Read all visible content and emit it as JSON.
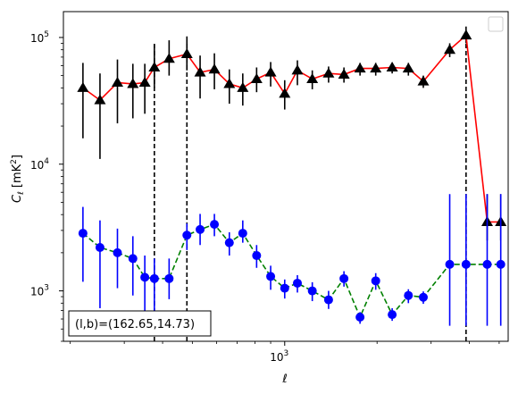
{
  "chart_data": {
    "type": "line",
    "xlabel": "ℓ",
    "ylabel_main": "C",
    "ylabel_sub": "ℓ",
    "ylabel_unit_open": "  [mK",
    "ylabel_unit_sup": "2",
    "ylabel_unit_close": "]",
    "x_scale": "log",
    "y_scale": "log",
    "xlim": [
      190,
      5350
    ],
    "ylim": [
      400,
      160000
    ],
    "x_tick_labels": [
      {
        "value": 1000,
        "base": "10",
        "exp": "3"
      }
    ],
    "y_tick_labels": [
      {
        "value": 1000,
        "base": "10",
        "exp": "3"
      },
      {
        "value": 10000,
        "base": "10",
        "exp": "4"
      },
      {
        "value": 100000,
        "base": "10",
        "exp": "5"
      }
    ],
    "legend": "top-right (empty)",
    "grid": false,
    "vertical_lines_x": [
      376,
      480,
      3900
    ],
    "annotation": "(l,b)=(162.65,14.73)",
    "series": [
      {
        "color": "#ff0000",
        "line_style": "solid",
        "marker": "triangle",
        "marker_color": "#000000",
        "errorbar_color": "#000000",
        "x": [
          220,
          250,
          285,
          320,
          350,
          376,
          420,
          480,
          530,
          590,
          660,
          730,
          810,
          900,
          1000,
          1100,
          1230,
          1390,
          1560,
          1760,
          1980,
          2240,
          2530,
          2830,
          3450,
          3900,
          4570,
          5060
        ],
        "y": [
          40000,
          32000,
          44000,
          43000,
          44000,
          58000,
          68000,
          74000,
          53000,
          56000,
          43000,
          40000,
          47000,
          53000,
          36000,
          55000,
          47000,
          52000,
          51000,
          57000,
          57000,
          58000,
          57000,
          45000,
          80000,
          104000,
          3500,
          3500
        ],
        "y_low": [
          16000,
          11000,
          21000,
          23000,
          25000,
          40000,
          50000,
          55000,
          33000,
          39000,
          30000,
          29000,
          37000,
          41000,
          27000,
          42000,
          39000,
          44000,
          44000,
          50000,
          50000,
          52000,
          50000,
          40000,
          70000,
          90000,
          2500,
          2500
        ],
        "y_high": [
          63000,
          52000,
          67000,
          62000,
          62000,
          88000,
          95000,
          102000,
          72000,
          75000,
          56000,
          52000,
          58000,
          64000,
          46000,
          66000,
          55000,
          59000,
          58000,
          63000,
          63000,
          63000,
          63000,
          50000,
          90000,
          122000,
          5800,
          5800
        ]
      },
      {
        "color": "#008000",
        "line_style": "dashed",
        "marker": "circle",
        "marker_color": "#0000ff",
        "errorbar_color": "#0000ff",
        "x": [
          220,
          250,
          285,
          320,
          350,
          376,
          420,
          480,
          530,
          590,
          660,
          730,
          810,
          900,
          1000,
          1100,
          1230,
          1390,
          1560,
          1760,
          1980,
          2240,
          2530,
          2830,
          3450,
          3900,
          4570,
          5060
        ],
        "y": [
          2850,
          2200,
          2000,
          1800,
          1280,
          1250,
          1250,
          2750,
          3050,
          3350,
          2400,
          2850,
          1900,
          1300,
          1050,
          1150,
          1000,
          850,
          1250,
          620,
          1200,
          650,
          920,
          890,
          1620,
          1620,
          1620,
          1620
        ],
        "y_low": [
          1180,
          730,
          1050,
          920,
          600,
          680,
          860,
          2100,
          2300,
          2700,
          1900,
          2400,
          1520,
          1020,
          870,
          970,
          830,
          720,
          1080,
          550,
          1020,
          580,
          800,
          790,
          530,
          530,
          530,
          530
        ],
        "y_high": [
          4600,
          3600,
          3100,
          2700,
          1900,
          1800,
          1800,
          3400,
          4050,
          4050,
          2900,
          3600,
          2300,
          1580,
          1230,
          1330,
          1170,
          1000,
          1430,
          680,
          1380,
          730,
          1030,
          990,
          5800,
          5800,
          5800,
          5800
        ]
      }
    ]
  }
}
